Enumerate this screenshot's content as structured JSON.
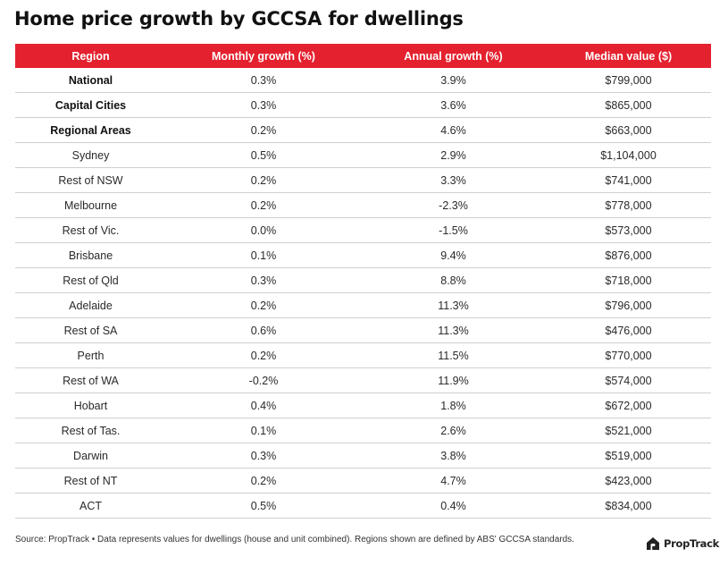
{
  "title": "Home price growth by GCCSA for dwellings",
  "colors": {
    "header_bg": "#e4212e",
    "header_text": "#ffffff",
    "row_divider": "#cfcfcf",
    "logo_mark": "#222222"
  },
  "brand": {
    "name": "PropTrack",
    "icon": "proptrack-house-icon"
  },
  "footer": {
    "source": "Source: PropTrack • Data represents values for dwellings (house and unit combined). Regions shown are defined by ABS' GCCSA standards."
  },
  "chart_data": {
    "type": "table",
    "columns": [
      "Region",
      "Monthly growth (%)",
      "Annual growth (%)",
      "Median value ($)"
    ],
    "rows": [
      {
        "region": "National",
        "monthly": "0.3%",
        "annual": "3.9%",
        "median": "$799,000",
        "bold": true
      },
      {
        "region": "Capital Cities",
        "monthly": "0.3%",
        "annual": "3.6%",
        "median": "$865,000",
        "bold": true
      },
      {
        "region": "Regional Areas",
        "monthly": "0.2%",
        "annual": "4.6%",
        "median": "$663,000",
        "bold": true
      },
      {
        "region": "Sydney",
        "monthly": "0.5%",
        "annual": "2.9%",
        "median": "$1,104,000",
        "bold": false
      },
      {
        "region": "Rest of NSW",
        "monthly": "0.2%",
        "annual": "3.3%",
        "median": "$741,000",
        "bold": false
      },
      {
        "region": "Melbourne",
        "monthly": "0.2%",
        "annual": "-2.3%",
        "median": "$778,000",
        "bold": false
      },
      {
        "region": "Rest of Vic.",
        "monthly": "0.0%",
        "annual": "-1.5%",
        "median": "$573,000",
        "bold": false
      },
      {
        "region": "Brisbane",
        "monthly": "0.1%",
        "annual": "9.4%",
        "median": "$876,000",
        "bold": false
      },
      {
        "region": "Rest of Qld",
        "monthly": "0.3%",
        "annual": "8.8%",
        "median": "$718,000",
        "bold": false
      },
      {
        "region": "Adelaide",
        "monthly": "0.2%",
        "annual": "11.3%",
        "median": "$796,000",
        "bold": false
      },
      {
        "region": "Rest of SA",
        "monthly": "0.6%",
        "annual": "11.3%",
        "median": "$476,000",
        "bold": false
      },
      {
        "region": "Perth",
        "monthly": "0.2%",
        "annual": "11.5%",
        "median": "$770,000",
        "bold": false
      },
      {
        "region": "Rest of WA",
        "monthly": "-0.2%",
        "annual": "11.9%",
        "median": "$574,000",
        "bold": false
      },
      {
        "region": "Hobart",
        "monthly": "0.4%",
        "annual": "1.8%",
        "median": "$672,000",
        "bold": false
      },
      {
        "region": "Rest of Tas.",
        "monthly": "0.1%",
        "annual": "2.6%",
        "median": "$521,000",
        "bold": false
      },
      {
        "region": "Darwin",
        "monthly": "0.3%",
        "annual": "3.8%",
        "median": "$519,000",
        "bold": false
      },
      {
        "region": "Rest of NT",
        "monthly": "0.2%",
        "annual": "4.7%",
        "median": "$423,000",
        "bold": false
      },
      {
        "region": "ACT",
        "monthly": "0.5%",
        "annual": "0.4%",
        "median": "$834,000",
        "bold": false
      }
    ]
  }
}
